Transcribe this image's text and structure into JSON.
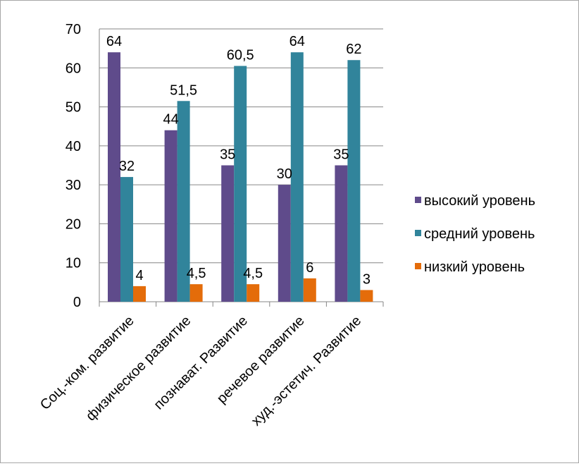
{
  "chart_data": {
    "type": "bar",
    "title": "",
    "xlabel": "",
    "ylabel": "",
    "ylim": [
      0,
      70
    ],
    "yticks": [
      0,
      10,
      20,
      30,
      40,
      50,
      60,
      70
    ],
    "grid": true,
    "legend_position": "right",
    "categories": [
      "Соц.-ком. развитие",
      "физическое развитие",
      "познават. Развитие",
      "речевое развитие",
      "худ.-эстетич. Развитие"
    ],
    "series": [
      {
        "name": "высокий уровень",
        "color": "#5f4b8b",
        "values": [
          64,
          44,
          35,
          30,
          35
        ],
        "labels": [
          "64",
          "44",
          "35",
          "30",
          "35"
        ]
      },
      {
        "name": "средний уровень",
        "color": "#31849b",
        "values": [
          32,
          51.5,
          60.5,
          64,
          62
        ],
        "labels": [
          "32",
          "51,5",
          "60,5",
          "64",
          "62"
        ]
      },
      {
        "name": "низкий уровень",
        "color": "#e46c0a",
        "values": [
          4,
          4.5,
          4.5,
          6,
          3
        ],
        "labels": [
          "4",
          "4,5",
          "4,5",
          "6",
          "3"
        ]
      }
    ]
  }
}
